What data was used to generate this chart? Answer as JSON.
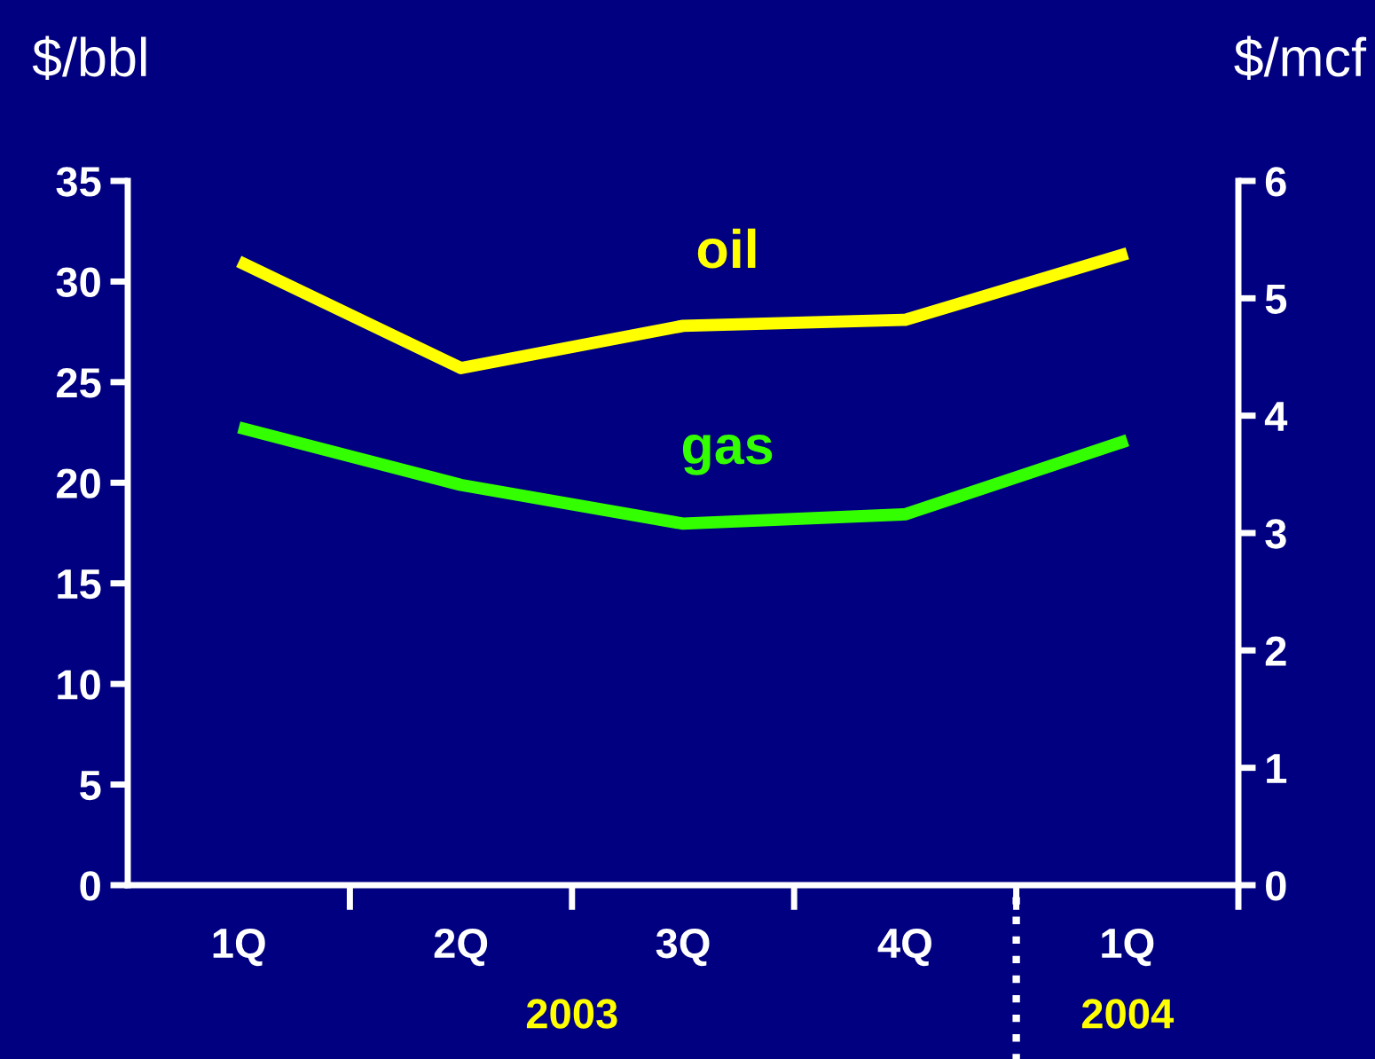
{
  "chart_data": {
    "type": "line",
    "ylabel": "$/bbl",
    "y2label": "$/mcf",
    "categories": [
      "1Q",
      "2Q",
      "3Q",
      "4Q",
      "1Q"
    ],
    "series": [
      {
        "name": "oil",
        "color": "#ffff00",
        "values": [
          31.0,
          25.7,
          27.8,
          28.1,
          31.4
        ]
      },
      {
        "name": "gas",
        "color": "#33ff00",
        "axis": "y2",
        "values": [
          3.9,
          3.41,
          3.08,
          3.16,
          3.79
        ]
      }
    ],
    "ylim": [
      0,
      35
    ],
    "yticks": [
      0,
      5,
      10,
      15,
      20,
      25,
      30,
      35
    ],
    "y2lim": [
      0,
      6
    ],
    "y2ticks": [
      0,
      1,
      2,
      3,
      4,
      5,
      6
    ],
    "annotations": [
      "2003",
      "2004"
    ],
    "grid": false,
    "legend": false,
    "marker": "none",
    "line_style": "solid"
  }
}
